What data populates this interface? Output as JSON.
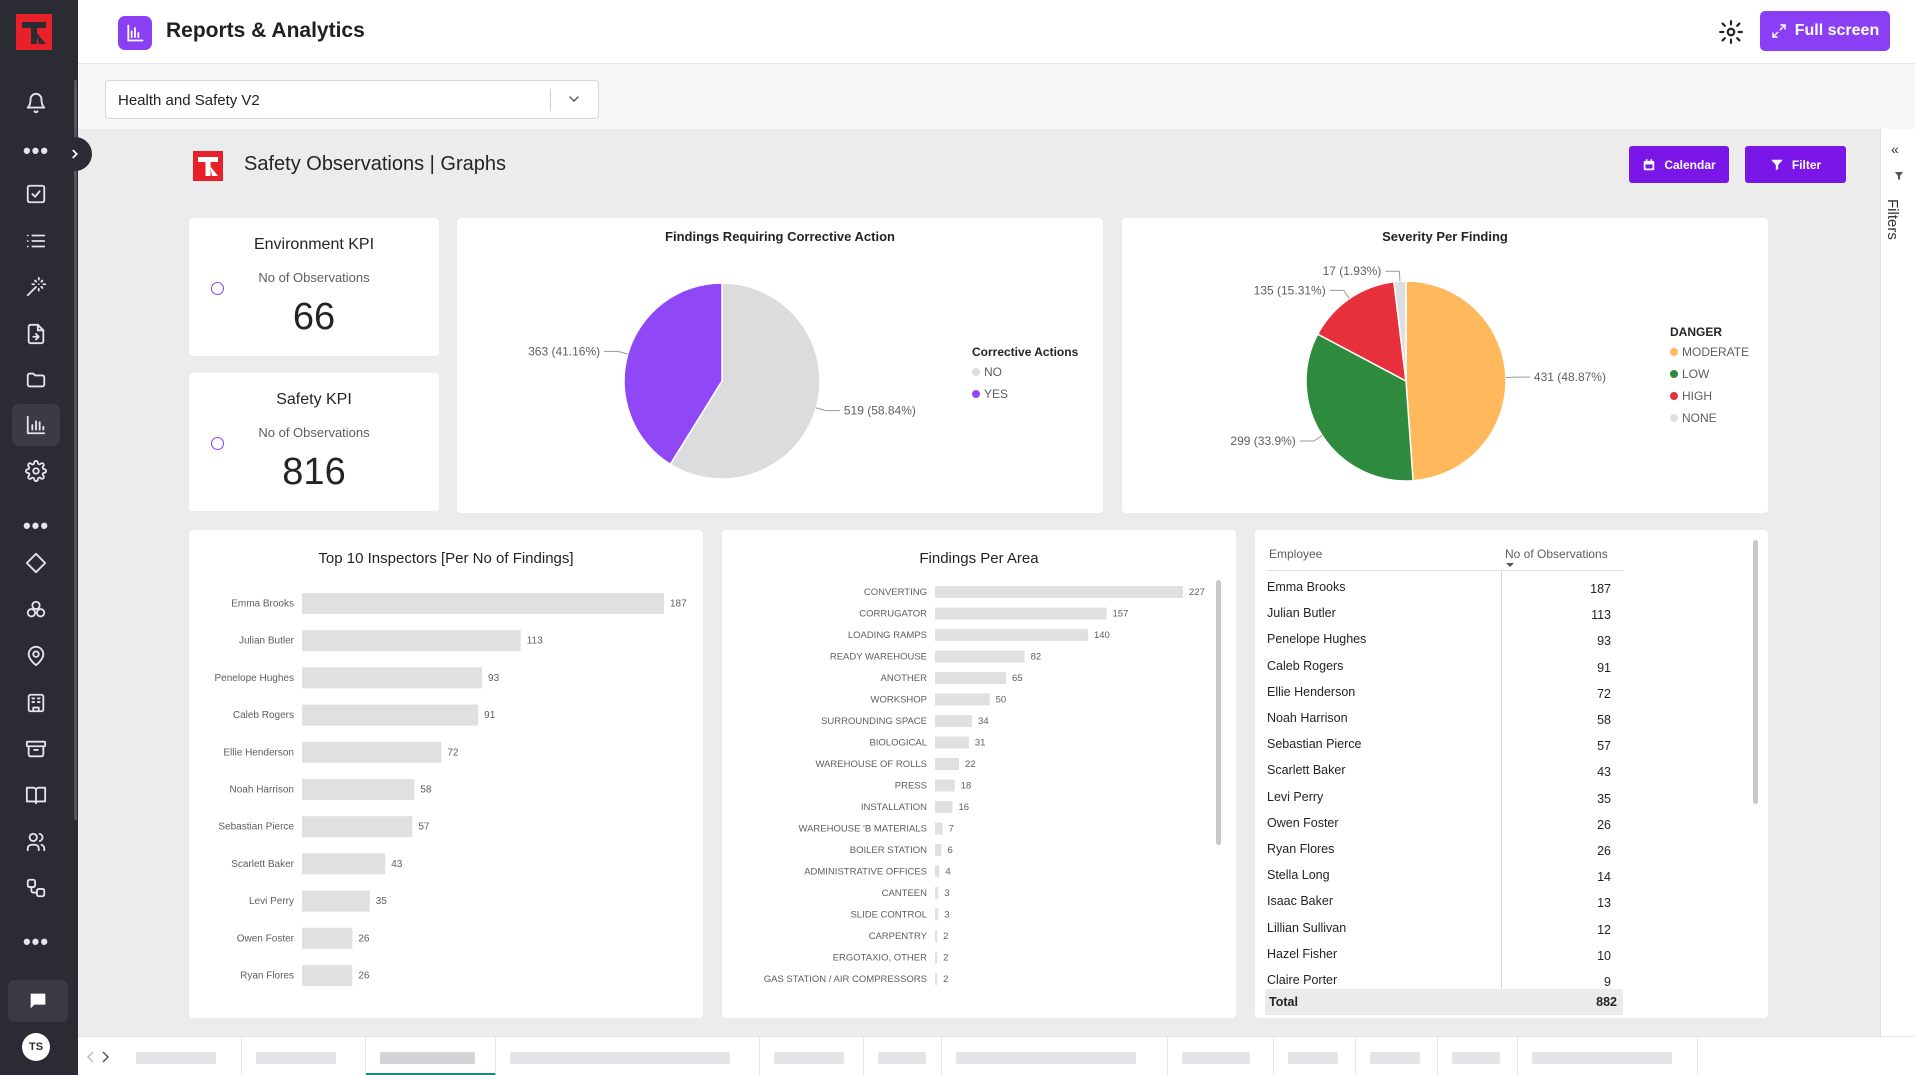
{
  "header": {
    "title": "Reports & Analytics",
    "fullscreen_label": "Full screen"
  },
  "sidebar": {
    "icons": [
      "bell-icon",
      "more-dots-icon",
      "checkbox-icon",
      "list-icon",
      "magic-wand-icon",
      "file-import-icon",
      "folder-icon",
      "bar-chart-icon",
      "settings-icon",
      "more-dots-icon",
      "tag-icon",
      "cubes-icon",
      "location-pin-icon",
      "building-icon",
      "archive-icon",
      "book-icon",
      "users-icon",
      "workflow-icon",
      "more-dots-icon"
    ],
    "avatar_initials": "TS"
  },
  "report_selector": {
    "value": "Health and Safety V2"
  },
  "report": {
    "title": "Safety Observations | Graphs",
    "calendar_label": "Calendar",
    "filter_label": "Filter",
    "accent": "#7a17e8"
  },
  "kpis": [
    {
      "title": "Environment KPI",
      "subtitle": "No of Observations",
      "value": "66"
    },
    {
      "title": "Safety KPI",
      "subtitle": "No of Observations",
      "value": "816"
    }
  ],
  "filters_pane": {
    "label": "Filters"
  },
  "chart_data": [
    {
      "type": "pie",
      "title": "Findings Requiring Corrective Action",
      "legend_title": "Corrective Actions",
      "legend_placement": "right",
      "slices": [
        {
          "label": "NO",
          "value": 519,
          "percent": "58.84%",
          "color": "#dcdbdd"
        },
        {
          "label": "YES",
          "value": 363,
          "percent": "41.16%",
          "color": "#9048f7"
        }
      ]
    },
    {
      "type": "pie",
      "title": "Severity Per Finding",
      "legend_title": "DANGER",
      "legend_placement": "right",
      "slices": [
        {
          "label": "MODERATE",
          "value": 431,
          "percent": "48.87%",
          "color": "#ffb85c"
        },
        {
          "label": "LOW",
          "value": 299,
          "percent": "33.9%",
          "color": "#2e8b3e"
        },
        {
          "label": "HIGH",
          "value": 135,
          "percent": "15.31%",
          "color": "#e8303d"
        },
        {
          "label": "NONE",
          "value": 17,
          "percent": "1.93%",
          "color": "#dedede"
        }
      ]
    },
    {
      "type": "bar",
      "orientation": "horizontal",
      "title": "Top 10 Inspectors [Per No of Findings]",
      "categories": [
        "Emma Brooks",
        "Julian Butler",
        "Penelope Hughes",
        "Caleb Rogers",
        "Ellie Henderson",
        "Noah Harrison",
        "Sebastian Pierce",
        "Scarlett Baker",
        "Levi Perry",
        "Owen Foster",
        "Ryan Flores"
      ],
      "values": [
        187,
        113,
        93,
        91,
        72,
        58,
        57,
        43,
        35,
        26,
        26
      ],
      "color": "#e0e0e0"
    },
    {
      "type": "bar",
      "orientation": "horizontal",
      "title": "Findings Per Area",
      "categories": [
        "CONVERTING",
        "CORRUGATOR",
        "LOADING RAMPS",
        "READY WAREHOUSE",
        "ANOTHER",
        "WORKSHOP",
        "SURROUNDING SPACE",
        "BIOLOGICAL",
        "WAREHOUSE OF ROLLS",
        "PRESS",
        "INSTALLATION",
        "WAREHOUSE 'B MATERIALS",
        "BOILER STATION",
        "ADMINISTRATIVE OFFICES",
        "CANTEEN",
        "SLIDE CONTROL",
        "CARPENTRY",
        "ERGOTAXIO, OTHER",
        "GAS STATION / AIR COMPRESSORS"
      ],
      "values": [
        227,
        157,
        140,
        82,
        65,
        50,
        34,
        31,
        22,
        18,
        16,
        7,
        6,
        4,
        3,
        3,
        2,
        2,
        2
      ],
      "color": "#e0e0e0"
    }
  ],
  "table": {
    "columns": [
      "Employee",
      "No of Observations"
    ],
    "rows": [
      [
        "Emma Brooks",
        "187"
      ],
      [
        "Julian Butler",
        "113"
      ],
      [
        "Penelope Hughes",
        "93"
      ],
      [
        "Caleb Rogers",
        "91"
      ],
      [
        "Ellie Henderson",
        "72"
      ],
      [
        "Noah Harrison",
        "58"
      ],
      [
        "Sebastian Pierce",
        "57"
      ],
      [
        "Scarlett Baker",
        "43"
      ],
      [
        "Levi Perry",
        "35"
      ],
      [
        "Owen Foster",
        "26"
      ],
      [
        "Ryan Flores",
        "26"
      ],
      [
        "Stella Long",
        "14"
      ],
      [
        "Isaac Baker",
        "13"
      ],
      [
        "Lillian Sullivan",
        "12"
      ],
      [
        "Hazel Fisher",
        "10"
      ],
      [
        "Claire Porter",
        "9"
      ]
    ],
    "total_label": "Total",
    "total_value": "882"
  }
}
